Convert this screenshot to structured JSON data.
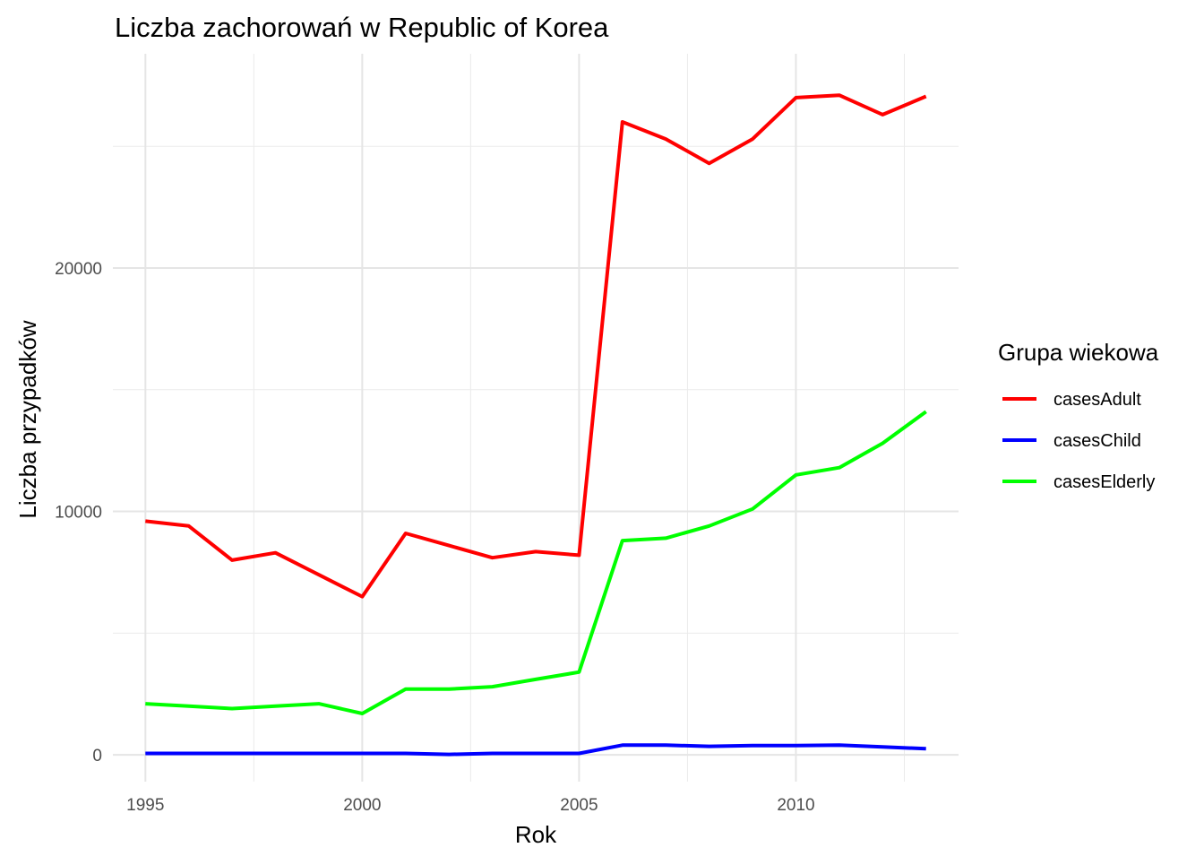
{
  "chart_data": {
    "type": "line",
    "title": "Liczba zachorowań w Republic of Korea",
    "xlabel": "Rok",
    "ylabel": "Liczba przypadków",
    "x": [
      1995,
      1996,
      1997,
      1998,
      1999,
      2000,
      2001,
      2002,
      2003,
      2004,
      2005,
      2006,
      2007,
      2008,
      2009,
      2010,
      2011,
      2012,
      2013
    ],
    "x_ticks": [
      "1995",
      "2000",
      "2005",
      "2010"
    ],
    "y_ticks": [
      "0",
      "10000",
      "20000"
    ],
    "xlim": [
      1994.25,
      2013.75
    ],
    "ylim": [
      -1100,
      28800
    ],
    "grid": true,
    "legend": {
      "title": "Grupa wiekowa",
      "placement": "right"
    },
    "series": [
      {
        "name": "casesAdult",
        "color": "#ff0000",
        "values": [
          9600,
          9400,
          8000,
          8300,
          7400,
          6500,
          9100,
          8600,
          8100,
          8350,
          8200,
          26000,
          25300,
          24300,
          25300,
          27000,
          27100,
          26300,
          27050
        ]
      },
      {
        "name": "casesChild",
        "color": "#0000ff",
        "values": [
          60,
          60,
          60,
          60,
          60,
          60,
          60,
          20,
          60,
          60,
          60,
          400,
          400,
          350,
          380,
          380,
          400,
          330,
          250
        ]
      },
      {
        "name": "casesElderly",
        "color": "#00ff00",
        "values": [
          2100,
          2000,
          1900,
          2000,
          2100,
          1700,
          2700,
          2700,
          2800,
          3100,
          3400,
          8800,
          8900,
          9400,
          10100,
          11500,
          11800,
          12800,
          14100
        ]
      }
    ]
  }
}
